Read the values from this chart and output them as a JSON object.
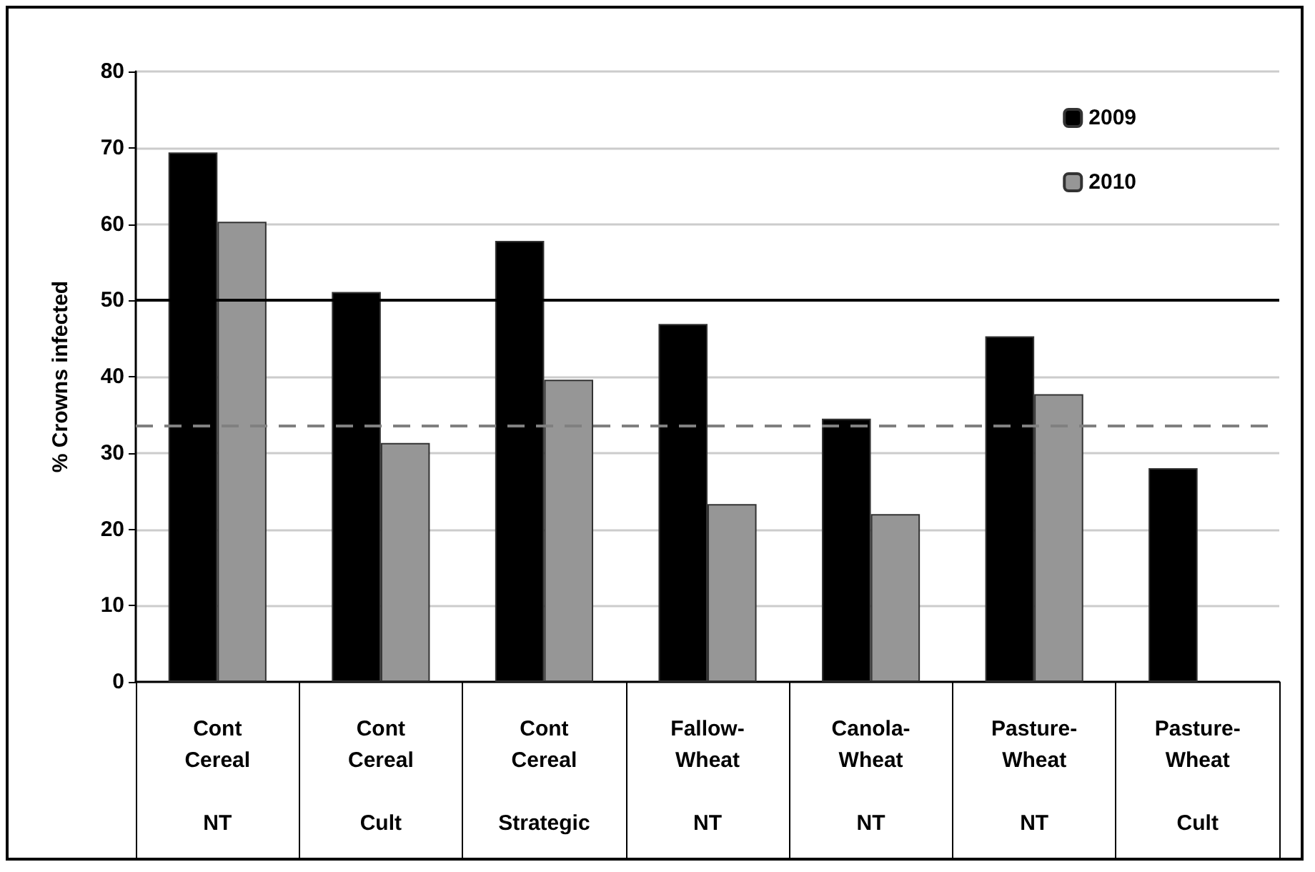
{
  "chart_data": {
    "type": "bar",
    "ylabel": "% Crowns infected",
    "categories": [
      "Cont\nCereal\n\nNT",
      "Cont\nCereal\n\nCult",
      "Cont\nCereal\n\nStrategic",
      "Fallow-\nWheat\n\nNT",
      "Canola-\nWheat\n\nNT",
      "Pasture-\nWheat\n\nNT",
      "Pasture-\nWheat\n\nCult"
    ],
    "series": [
      {
        "name": "2009",
        "color": "#000000",
        "values": [
          69.4,
          51.1,
          57.8,
          46.9,
          34.5,
          45.3,
          28.0
        ]
      },
      {
        "name": "2010",
        "color": "#969696",
        "values": [
          60.3,
          31.3,
          39.6,
          23.3,
          22.0,
          37.7,
          null
        ]
      }
    ],
    "ylim": [
      0,
      80
    ],
    "yticks": [
      0,
      10,
      20,
      30,
      40,
      50,
      60,
      70,
      80
    ],
    "ref_lines": [
      {
        "axis": "y",
        "value": 50,
        "color": "#000000",
        "line_style": "solid"
      },
      {
        "axis": "y",
        "value": 33.5,
        "color": "#808080",
        "line_style": "dashed"
      }
    ],
    "grid": "y",
    "legend": "top right"
  }
}
